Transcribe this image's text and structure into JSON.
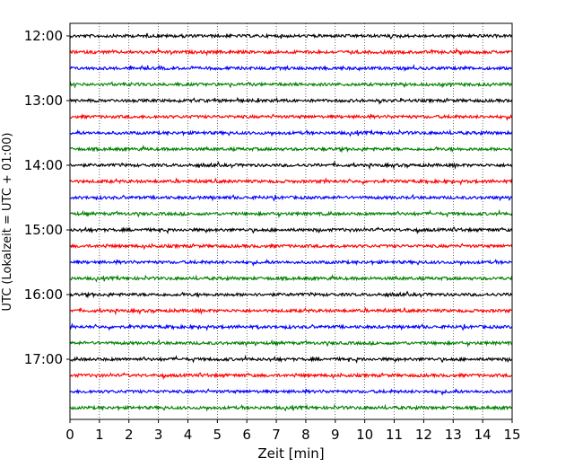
{
  "chart_data": {
    "type": "line",
    "title": "",
    "xlabel": "Zeit  [min]",
    "ylabel": "UTC (Lokalzeit = UTC + 01:00)",
    "xlim": [
      0,
      15
    ],
    "x_ticks": [
      "0",
      "1",
      "2",
      "3",
      "4",
      "5",
      "6",
      "7",
      "8",
      "9",
      "10",
      "11",
      "12",
      "13",
      "14",
      "15"
    ],
    "y_tick_labels": [
      "12:00",
      "13:00",
      "14:00",
      "15:00",
      "16:00",
      "17:00"
    ],
    "grid": "vertical dotted lines at each minute",
    "legend": "none",
    "trace_colors": [
      "#000000",
      "#ff0000",
      "#0000ff",
      "#008000"
    ],
    "trace_start_times": [
      "12:00",
      "12:15",
      "12:30",
      "12:45",
      "13:00",
      "13:15",
      "13:30",
      "13:45",
      "14:00",
      "14:15",
      "14:30",
      "14:45",
      "15:00",
      "15:15",
      "15:30",
      "15:45",
      "16:00",
      "16:15",
      "16:30",
      "16:45",
      "17:00",
      "17:15",
      "17:30",
      "17:45"
    ],
    "trace_duration_min": 15
  }
}
